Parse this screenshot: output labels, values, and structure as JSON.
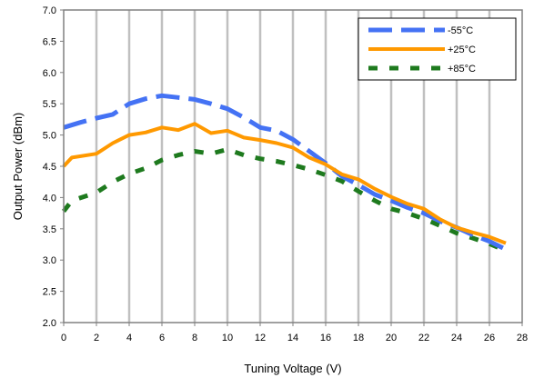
{
  "chart_data": {
    "type": "line",
    "title": "",
    "xlabel": "Tuning Voltage (V)",
    "ylabel": "Output Power (dBm)",
    "xlim": [
      0,
      28
    ],
    "ylim": [
      2.0,
      7.0
    ],
    "xticks": [
      0,
      2,
      4,
      6,
      8,
      10,
      12,
      14,
      16,
      18,
      20,
      22,
      24,
      26,
      28
    ],
    "yticks": [
      "2.0",
      "2.5",
      "3.0",
      "3.5",
      "4.0",
      "4.5",
      "5.0",
      "5.5",
      "6.0",
      "6.5",
      "7.0"
    ],
    "grid": "vertical",
    "legend_position": "top-right",
    "series": [
      {
        "name": "-55°C",
        "color": "#4472f4",
        "style": "long-dash",
        "x": [
          0,
          1,
          2,
          3,
          4,
          5,
          6,
          7,
          8,
          9,
          10,
          11,
          12,
          13,
          14,
          15,
          16,
          17,
          18,
          19,
          20,
          21,
          22,
          23,
          24,
          25,
          26,
          27
        ],
        "y": [
          5.12,
          5.2,
          5.27,
          5.33,
          5.5,
          5.58,
          5.63,
          5.6,
          5.57,
          5.5,
          5.42,
          5.28,
          5.12,
          5.07,
          4.93,
          4.74,
          4.55,
          4.34,
          4.2,
          4.05,
          3.95,
          3.84,
          3.75,
          3.62,
          3.52,
          3.4,
          3.3,
          3.17
        ]
      },
      {
        "name": "+25°C",
        "color": "#ff9900",
        "style": "solid",
        "x": [
          0,
          0.5,
          2,
          3,
          4,
          5,
          6,
          7,
          8,
          9,
          10,
          11,
          12,
          13,
          14,
          15,
          16,
          17,
          18,
          19,
          20,
          21,
          22,
          23,
          24,
          25,
          26,
          27
        ],
        "y": [
          4.5,
          4.64,
          4.7,
          4.87,
          5.0,
          5.04,
          5.12,
          5.08,
          5.18,
          5.03,
          5.07,
          4.96,
          4.92,
          4.87,
          4.8,
          4.64,
          4.53,
          4.37,
          4.29,
          4.14,
          4.01,
          3.9,
          3.82,
          3.65,
          3.52,
          3.44,
          3.37,
          3.27
        ]
      },
      {
        "name": "+85°C",
        "color": "#1e7a1e",
        "style": "short-dash",
        "x": [
          0,
          0.5,
          2,
          3,
          4,
          5,
          6,
          7,
          8,
          9,
          10,
          11,
          12,
          13,
          14,
          15,
          16,
          17,
          18,
          19,
          20,
          21,
          22,
          23,
          24,
          25,
          26,
          27
        ],
        "y": [
          3.78,
          3.95,
          4.08,
          4.25,
          4.38,
          4.47,
          4.6,
          4.68,
          4.74,
          4.7,
          4.77,
          4.68,
          4.62,
          4.58,
          4.52,
          4.45,
          4.36,
          4.26,
          4.1,
          3.95,
          3.82,
          3.75,
          3.66,
          3.55,
          3.43,
          3.35,
          3.26,
          3.15
        ]
      }
    ]
  }
}
